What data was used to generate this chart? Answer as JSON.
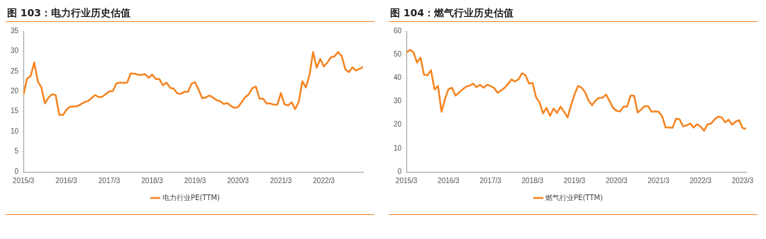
{
  "chart_data": [
    {
      "type": "line",
      "title": "图 103：电力行业历史估值",
      "legend": "bottom",
      "grid": false,
      "marker": "none",
      "x": [
        "2015-03",
        "2015-04",
        "2015-05",
        "2015-06",
        "2015-07",
        "2015-08",
        "2015-09",
        "2015-10",
        "2015-11",
        "2015-12",
        "2016-01",
        "2016-02",
        "2016-03",
        "2016-04",
        "2016-06",
        "2016-08",
        "2016-09",
        "2016-10",
        "2016-11",
        "2016-12",
        "2017-01",
        "2017-02",
        "2017-03",
        "2017-04",
        "2017-05",
        "2017-06",
        "2017-07",
        "2017-08",
        "2017-09",
        "2017-10",
        "2017-11",
        "2017-12",
        "2018-01",
        "2018-02",
        "2018-03",
        "2018-04",
        "2018-05",
        "2018-06",
        "2018-07",
        "2018-08",
        "2018-09",
        "2018-10",
        "2018-11",
        "2018-12",
        "2019-01",
        "2019-02",
        "2019-03",
        "2019-04",
        "2019-05",
        "2019-06",
        "2019-07",
        "2019-08",
        "2019-09",
        "2019-10",
        "2019-11",
        "2019-12",
        "2020-01",
        "2020-02",
        "2020-03",
        "2020-04",
        "2020-05",
        "2020-06",
        "2020-07",
        "2020-08",
        "2020-09",
        "2020-10",
        "2020-11",
        "2020-12",
        "2021-01",
        "2021-02",
        "2021-03",
        "2021-04",
        "2021-05",
        "2021-06",
        "2021-07",
        "2021-08",
        "2021-09",
        "2021-10",
        "2021-11",
        "2021-12",
        "2022-01",
        "2022-02",
        "2022-03",
        "2022-04",
        "2022-05",
        "2022-06",
        "2022-07",
        "2022-08",
        "2022-09",
        "2022-10",
        "2022-11",
        "2022-12",
        "2023-01",
        "2023-02"
      ],
      "series": [
        {
          "name": "电力行业PE(TTM)",
          "color": "#f5831f",
          "values": [
            19.2,
            23.2,
            23.8,
            27.2,
            22.5,
            21.0,
            17.0,
            18.5,
            19.3,
            19.1,
            14.2,
            14.1,
            15.4,
            16.2,
            16.3,
            17.3,
            17.6,
            18.3,
            19.1,
            18.6,
            18.7,
            19.3,
            20.0,
            20.1,
            22.0,
            22.2,
            22.1,
            22.2,
            24.5,
            24.4,
            24.2,
            24.1,
            24.3,
            23.4,
            24.2,
            23.1,
            23.1,
            21.5,
            22.2,
            20.9,
            20.7,
            19.5,
            19.4,
            19.9,
            19.9,
            21.9,
            22.3,
            20.4,
            18.3,
            18.5,
            19.0,
            18.5,
            17.8,
            17.6,
            16.9,
            17.1,
            16.4,
            15.9,
            16.1,
            17.3,
            18.5,
            19.3,
            20.8,
            21.2,
            18.2,
            18.2,
            17.0,
            17.0,
            16.7,
            16.7,
            19.6,
            16.8,
            16.5,
            17.3,
            15.6,
            17.4,
            22.5,
            21.0,
            24.1,
            29.8,
            25.9,
            28.1,
            26.2,
            27.2,
            28.5,
            28.7,
            29.8,
            28.8,
            25.5,
            24.8,
            26.0,
            25.2,
            25.6,
            26.1
          ]
        }
      ],
      "xlim": [
        "2015-03",
        "2023-02"
      ],
      "xticks": [
        {
          "value": "2015-03",
          "label": "2015/3"
        },
        {
          "value": "2016-03",
          "label": "2016/3"
        },
        {
          "value": "2017-03",
          "label": "2017/3"
        },
        {
          "value": "2018-03",
          "label": "2018/3"
        },
        {
          "value": "2019-03",
          "label": "2019/3"
        },
        {
          "value": "2020-03",
          "label": "2020/3"
        },
        {
          "value": "2021-03",
          "label": "2021/3"
        },
        {
          "value": "2022-03",
          "label": "2022/3"
        }
      ],
      "ylim": [
        0,
        35
      ],
      "yticks": [
        0,
        5,
        10,
        15,
        20,
        25,
        30,
        35
      ]
    },
    {
      "type": "line",
      "title": "图 104：燃气行业历史估值",
      "legend": "bottom",
      "grid": false,
      "marker": "none",
      "x": [
        "2015-03",
        "2015-04",
        "2015-05",
        "2015-06",
        "2015-07",
        "2015-08",
        "2015-09",
        "2015-10",
        "2015-11",
        "2015-12",
        "2016-01",
        "2016-02",
        "2016-03",
        "2016-04",
        "2016-05",
        "2016-06",
        "2016-07",
        "2016-08",
        "2016-09",
        "2016-10",
        "2016-11",
        "2016-12",
        "2017-01",
        "2017-02",
        "2017-03",
        "2017-04",
        "2017-05",
        "2017-06",
        "2017-07",
        "2017-08",
        "2017-09",
        "2017-10",
        "2017-11",
        "2017-12",
        "2018-01",
        "2018-02",
        "2018-03",
        "2018-04",
        "2018-05",
        "2018-06",
        "2018-07",
        "2018-08",
        "2018-09",
        "2018-10",
        "2018-11",
        "2018-12",
        "2019-01",
        "2019-02",
        "2019-03",
        "2019-04",
        "2019-05",
        "2019-06",
        "2019-07",
        "2019-08",
        "2019-09",
        "2019-10",
        "2019-11",
        "2019-12",
        "2020-01",
        "2020-02",
        "2020-03",
        "2020-04",
        "2020-05",
        "2020-06",
        "2020-07",
        "2020-08",
        "2020-09",
        "2020-10",
        "2020-11",
        "2020-12",
        "2021-01",
        "2021-02",
        "2021-03",
        "2021-04",
        "2021-05",
        "2021-06",
        "2021-07",
        "2021-08",
        "2021-09",
        "2021-10",
        "2021-11",
        "2021-12",
        "2022-01",
        "2022-02",
        "2022-03",
        "2022-04",
        "2022-05",
        "2022-06",
        "2022-07",
        "2022-08",
        "2022-09",
        "2022-10",
        "2022-11",
        "2022-12",
        "2023-01",
        "2023-02",
        "2023-03",
        "2023-04"
      ],
      "series": [
        {
          "name": "燃气行业PE(TTM)",
          "color": "#f5831f",
          "values": [
            51.0,
            52.0,
            51.0,
            46.6,
            48.7,
            41.4,
            41.2,
            43.3,
            35.1,
            36.6,
            25.6,
            31.1,
            35.3,
            35.8,
            32.5,
            33.8,
            35.1,
            36.3,
            36.7,
            37.6,
            36.1,
            37.1,
            35.9,
            37.1,
            36.6,
            35.8,
            33.7,
            34.7,
            35.8,
            37.5,
            39.4,
            38.5,
            39.5,
            42.0,
            41.2,
            37.6,
            37.9,
            31.8,
            29.6,
            24.9,
            27.3,
            23.9,
            27.0,
            25.1,
            27.8,
            25.6,
            23.2,
            28.4,
            33.0,
            36.6,
            35.9,
            34.0,
            30.4,
            28.4,
            30.4,
            31.6,
            31.6,
            33.0,
            30.1,
            27.3,
            26.0,
            25.8,
            27.8,
            27.8,
            32.5,
            32.5,
            25.3,
            26.5,
            28.0,
            28.0,
            25.6,
            25.8,
            25.6,
            23.7,
            18.9,
            18.9,
            18.8,
            22.7,
            22.4,
            19.4,
            19.8,
            20.6,
            18.9,
            20.3,
            19.3,
            17.5,
            20.3,
            20.6,
            22.4,
            23.5,
            23.2,
            21.1,
            22.2,
            20.1,
            21.4,
            22.0,
            18.6,
            18.4
          ]
        }
      ],
      "xlim": [
        "2015-03",
        "2023-04"
      ],
      "xticks": [
        {
          "value": "2015-03",
          "label": "2015/3"
        },
        {
          "value": "2016-03",
          "label": "2016/3"
        },
        {
          "value": "2017-03",
          "label": "2017/3"
        },
        {
          "value": "2018-03",
          "label": "2018/3"
        },
        {
          "value": "2019-03",
          "label": "2019/3"
        },
        {
          "value": "2020-03",
          "label": "2020/3"
        },
        {
          "value": "2021-03",
          "label": "2021/3"
        },
        {
          "value": "2022-03",
          "label": "2022/3"
        },
        {
          "value": "2023-03",
          "label": "2023/3"
        }
      ],
      "ylim": [
        0,
        60
      ],
      "yticks": [
        0,
        10,
        20,
        30,
        40,
        50,
        60
      ]
    }
  ]
}
